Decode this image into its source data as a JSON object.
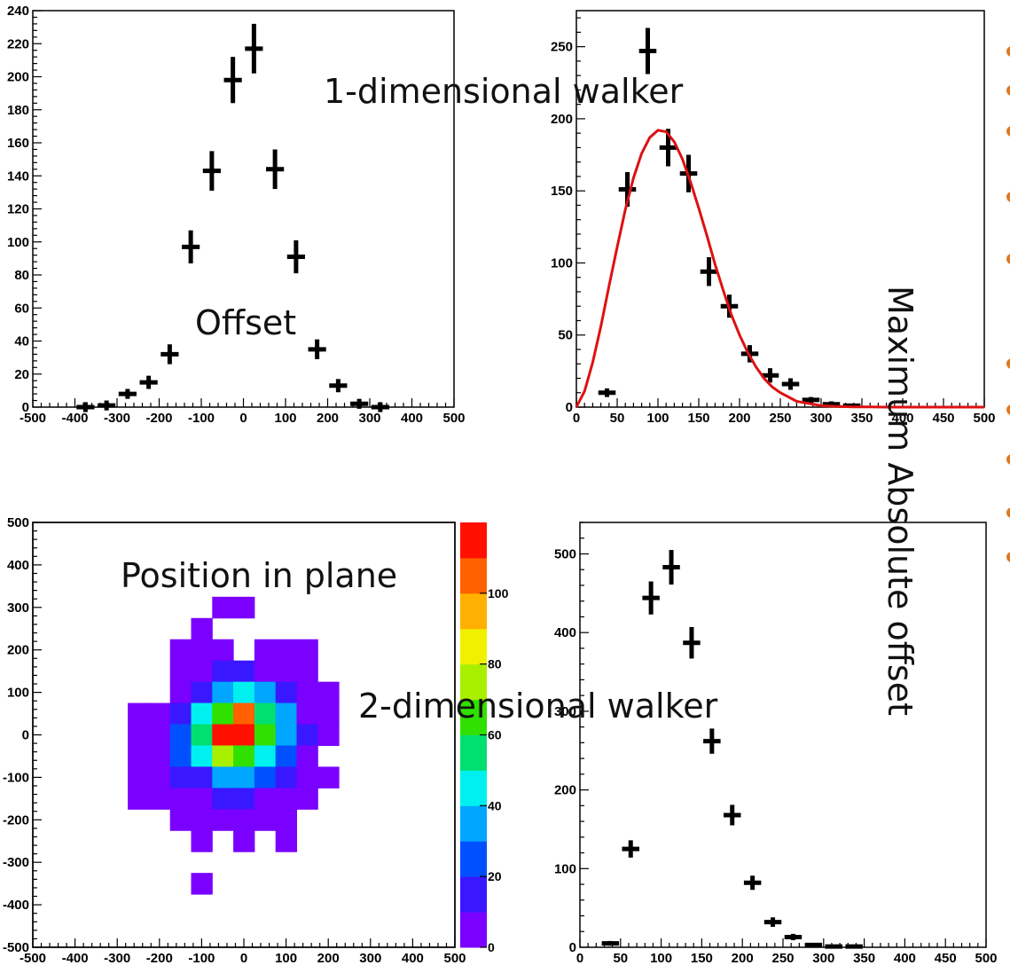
{
  "overlay_labels": {
    "one_dim": "1-dimensional walker",
    "offset": "Offset",
    "max_abs": "Maximum Absolute offset",
    "position": "Position in plane",
    "two_dim": "2-dimensional walker"
  },
  "colors": {
    "points": "#000000",
    "fit": "#dd1111",
    "edge_bullets": "#e07820"
  },
  "chart_data": [
    {
      "type": "scatter",
      "name": "offset-histogram",
      "xlim": [
        -500,
        500
      ],
      "ylim": [
        0,
        240
      ],
      "x_ticks": [
        -500,
        -400,
        -300,
        -200,
        -100,
        0,
        100,
        200,
        300,
        400,
        500
      ],
      "y_ticks": [
        0,
        20,
        40,
        60,
        80,
        100,
        120,
        140,
        160,
        180,
        200,
        220,
        240
      ],
      "bin_width": 50,
      "points": [
        {
          "x": -375,
          "y": 0,
          "err": 3
        },
        {
          "x": -325,
          "y": 1,
          "err": 3
        },
        {
          "x": -275,
          "y": 8,
          "err": 3
        },
        {
          "x": -225,
          "y": 15,
          "err": 4
        },
        {
          "x": -175,
          "y": 32,
          "err": 6
        },
        {
          "x": -125,
          "y": 97,
          "err": 10
        },
        {
          "x": -75,
          "y": 143,
          "err": 12
        },
        {
          "x": -25,
          "y": 198,
          "err": 14
        },
        {
          "x": 25,
          "y": 217,
          "err": 15
        },
        {
          "x": 75,
          "y": 144,
          "err": 12
        },
        {
          "x": 125,
          "y": 91,
          "err": 10
        },
        {
          "x": 175,
          "y": 35,
          "err": 6
        },
        {
          "x": 225,
          "y": 13,
          "err": 4
        },
        {
          "x": 275,
          "y": 2,
          "err": 3
        },
        {
          "x": 325,
          "y": 0,
          "err": 3
        }
      ]
    },
    {
      "type": "scatter",
      "name": "max-abs-offset-1d",
      "xlim": [
        0,
        500
      ],
      "ylim": [
        0,
        275
      ],
      "x_ticks": [
        0,
        50,
        100,
        150,
        200,
        250,
        300,
        350,
        400,
        450,
        500
      ],
      "y_ticks": [
        0,
        50,
        100,
        150,
        200,
        250
      ],
      "bin_width": 25,
      "points": [
        {
          "x": 37.5,
          "y": 10,
          "err": 3
        },
        {
          "x": 62.5,
          "y": 151,
          "err": 12
        },
        {
          "x": 87.5,
          "y": 247,
          "err": 16
        },
        {
          "x": 112.5,
          "y": 180,
          "err": 13
        },
        {
          "x": 137.5,
          "y": 162,
          "err": 13
        },
        {
          "x": 162.5,
          "y": 94,
          "err": 10
        },
        {
          "x": 187.5,
          "y": 70,
          "err": 8
        },
        {
          "x": 212.5,
          "y": 37,
          "err": 6
        },
        {
          "x": 237.5,
          "y": 22,
          "err": 5
        },
        {
          "x": 262.5,
          "y": 16,
          "err": 4
        },
        {
          "x": 287.5,
          "y": 5,
          "err": 2
        },
        {
          "x": 312.5,
          "y": 2,
          "err": 2
        },
        {
          "x": 337.5,
          "y": 1,
          "err": 1
        }
      ],
      "fit": {
        "x": [
          0,
          10,
          20,
          30,
          40,
          50,
          60,
          70,
          80,
          90,
          100,
          110,
          120,
          130,
          140,
          150,
          160,
          170,
          180,
          190,
          200,
          210,
          220,
          230,
          240,
          250,
          260,
          270,
          280,
          290,
          300,
          320,
          340,
          360,
          380,
          400,
          450,
          500
        ],
        "y": [
          0,
          11,
          31,
          56,
          84,
          111,
          137,
          159,
          176,
          187,
          192,
          191,
          184,
          172,
          156,
          138,
          119,
          99,
          81,
          64,
          50,
          38,
          28,
          20,
          14,
          10,
          7,
          4,
          3,
          2,
          1,
          0.5,
          0.2,
          0.1,
          0,
          0,
          0,
          0
        ]
      }
    },
    {
      "type": "heatmap",
      "name": "position-in-plane",
      "xlim": [
        -500,
        500
      ],
      "ylim": [
        -500,
        500
      ],
      "x_ticks": [
        -500,
        -400,
        -300,
        -200,
        -100,
        0,
        100,
        200,
        300,
        400,
        500
      ],
      "y_ticks": [
        -500,
        -400,
        -300,
        -200,
        -100,
        0,
        100,
        200,
        300,
        400,
        500
      ],
      "cell_size": 50,
      "color_scale": {
        "min": 0,
        "max": 120,
        "ticks": [
          0,
          20,
          40,
          60,
          80,
          100
        ],
        "tick_labels": [
          "0",
          "20",
          "40",
          "60",
          "80",
          "100"
        ],
        "stops": [
          "#7a00ff",
          "#3a18ff",
          "#0050ff",
          "#00a6ff",
          "#00f0f0",
          "#00e070",
          "#30e000",
          "#a8f000",
          "#f0f000",
          "#ffb000",
          "#ff6000",
          "#ff1000"
        ]
      },
      "cells": [
        {
          "x": -50,
          "y": 300,
          "v": 2
        },
        {
          "x": 0,
          "y": 300,
          "v": 2
        },
        {
          "x": -100,
          "y": 250,
          "v": 2
        },
        {
          "x": -150,
          "y": 200,
          "v": 2
        },
        {
          "x": -100,
          "y": 200,
          "v": 2
        },
        {
          "x": -50,
          "y": 200,
          "v": 2
        },
        {
          "x": 50,
          "y": 200,
          "v": 2
        },
        {
          "x": 100,
          "y": 200,
          "v": 2
        },
        {
          "x": 150,
          "y": 200,
          "v": 2
        },
        {
          "x": -150,
          "y": 150,
          "v": 3
        },
        {
          "x": -100,
          "y": 150,
          "v": 8
        },
        {
          "x": -50,
          "y": 150,
          "v": 15
        },
        {
          "x": 0,
          "y": 150,
          "v": 12
        },
        {
          "x": 50,
          "y": 150,
          "v": 6
        },
        {
          "x": 100,
          "y": 150,
          "v": 3
        },
        {
          "x": 150,
          "y": 150,
          "v": 2
        },
        {
          "x": -150,
          "y": 100,
          "v": 5
        },
        {
          "x": -100,
          "y": 100,
          "v": 18
        },
        {
          "x": -50,
          "y": 100,
          "v": 38
        },
        {
          "x": 0,
          "y": 100,
          "v": 42
        },
        {
          "x": 50,
          "y": 100,
          "v": 30
        },
        {
          "x": 100,
          "y": 100,
          "v": 12
        },
        {
          "x": 150,
          "y": 100,
          "v": 3
        },
        {
          "x": 200,
          "y": 100,
          "v": 2
        },
        {
          "x": -250,
          "y": 50,
          "v": 2
        },
        {
          "x": -200,
          "y": 50,
          "v": 4
        },
        {
          "x": -150,
          "y": 50,
          "v": 12
        },
        {
          "x": -100,
          "y": 50,
          "v": 40
        },
        {
          "x": -50,
          "y": 50,
          "v": 62
        },
        {
          "x": 0,
          "y": 50,
          "v": 108
        },
        {
          "x": 50,
          "y": 50,
          "v": 52
        },
        {
          "x": 100,
          "y": 50,
          "v": 30
        },
        {
          "x": 150,
          "y": 50,
          "v": 8
        },
        {
          "x": 200,
          "y": 50,
          "v": 2
        },
        {
          "x": -250,
          "y": 0,
          "v": 2
        },
        {
          "x": -200,
          "y": 0,
          "v": 5
        },
        {
          "x": -150,
          "y": 0,
          "v": 22
        },
        {
          "x": -100,
          "y": 0,
          "v": 58
        },
        {
          "x": -50,
          "y": 0,
          "v": 116
        },
        {
          "x": 0,
          "y": 0,
          "v": 112
        },
        {
          "x": 50,
          "y": 0,
          "v": 64
        },
        {
          "x": 100,
          "y": 0,
          "v": 35
        },
        {
          "x": 150,
          "y": 0,
          "v": 10
        },
        {
          "x": 200,
          "y": 0,
          "v": 2
        },
        {
          "x": -250,
          "y": -50,
          "v": 2
        },
        {
          "x": -200,
          "y": -50,
          "v": 5
        },
        {
          "x": -150,
          "y": -50,
          "v": 20
        },
        {
          "x": -100,
          "y": -50,
          "v": 42
        },
        {
          "x": -50,
          "y": -50,
          "v": 70
        },
        {
          "x": 0,
          "y": -50,
          "v": 60
        },
        {
          "x": 50,
          "y": -50,
          "v": 44
        },
        {
          "x": 100,
          "y": -50,
          "v": 20
        },
        {
          "x": 150,
          "y": -50,
          "v": 6
        },
        {
          "x": -250,
          "y": -100,
          "v": 2
        },
        {
          "x": -200,
          "y": -100,
          "v": 3
        },
        {
          "x": -150,
          "y": -100,
          "v": 10
        },
        {
          "x": -100,
          "y": -100,
          "v": 15
        },
        {
          "x": -50,
          "y": -100,
          "v": 38
        },
        {
          "x": 0,
          "y": -100,
          "v": 36
        },
        {
          "x": 50,
          "y": -100,
          "v": 22
        },
        {
          "x": 100,
          "y": -100,
          "v": 12
        },
        {
          "x": 150,
          "y": -100,
          "v": 4
        },
        {
          "x": 200,
          "y": -100,
          "v": 2
        },
        {
          "x": -250,
          "y": -150,
          "v": 2
        },
        {
          "x": -200,
          "y": -150,
          "v": 2
        },
        {
          "x": -150,
          "y": -150,
          "v": 4
        },
        {
          "x": -100,
          "y": -150,
          "v": 6
        },
        {
          "x": -50,
          "y": -150,
          "v": 10
        },
        {
          "x": 0,
          "y": -150,
          "v": 12
        },
        {
          "x": 50,
          "y": -150,
          "v": 6
        },
        {
          "x": 100,
          "y": -150,
          "v": 4
        },
        {
          "x": 150,
          "y": -150,
          "v": 2
        },
        {
          "x": -150,
          "y": -200,
          "v": 2
        },
        {
          "x": -100,
          "y": -200,
          "v": 2
        },
        {
          "x": -50,
          "y": -200,
          "v": 2
        },
        {
          "x": 0,
          "y": -200,
          "v": 2
        },
        {
          "x": 50,
          "y": -200,
          "v": 2
        },
        {
          "x": 100,
          "y": -200,
          "v": 2
        },
        {
          "x": -100,
          "y": -250,
          "v": 2
        },
        {
          "x": 0,
          "y": -250,
          "v": 2
        },
        {
          "x": 100,
          "y": -250,
          "v": 2
        },
        {
          "x": -100,
          "y": -350,
          "v": 2
        }
      ]
    },
    {
      "type": "scatter",
      "name": "max-abs-offset-2d",
      "xlim": [
        0,
        500
      ],
      "ylim": [
        0,
        540
      ],
      "x_ticks": [
        0,
        50,
        100,
        150,
        200,
        250,
        300,
        350,
        400,
        450,
        500
      ],
      "x_tick_labels": [
        "0",
        "50",
        "100",
        "150",
        "200",
        "250",
        "300",
        "350",
        "400",
        "450",
        "500"
      ],
      "y_ticks": [
        0,
        100,
        200,
        300,
        400,
        500
      ],
      "bin_width": 25,
      "points": [
        {
          "x": 37.5,
          "y": 5,
          "err": 3
        },
        {
          "x": 62.5,
          "y": 125,
          "err": 11
        },
        {
          "x": 87.5,
          "y": 444,
          "err": 21
        },
        {
          "x": 112.5,
          "y": 483,
          "err": 22
        },
        {
          "x": 137.5,
          "y": 387,
          "err": 20
        },
        {
          "x": 162.5,
          "y": 262,
          "err": 16
        },
        {
          "x": 187.5,
          "y": 168,
          "err": 13
        },
        {
          "x": 212.5,
          "y": 82,
          "err": 9
        },
        {
          "x": 237.5,
          "y": 32,
          "err": 6
        },
        {
          "x": 262.5,
          "y": 13,
          "err": 4
        },
        {
          "x": 287.5,
          "y": 3,
          "err": 2
        },
        {
          "x": 312.5,
          "y": 1,
          "err": 1
        },
        {
          "x": 337.5,
          "y": 1,
          "err": 1
        }
      ]
    }
  ]
}
